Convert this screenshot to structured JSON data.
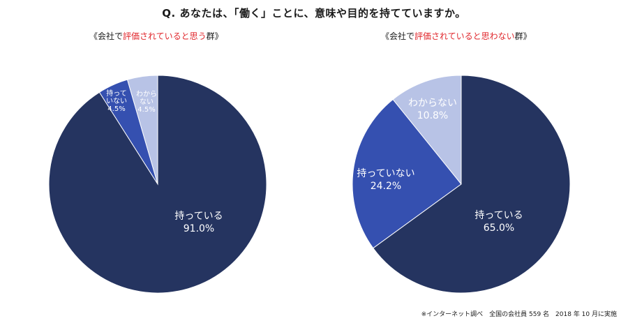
{
  "header": {
    "question": "Q. あなたは、「働く」ことに、意味や目的を持てていますか。"
  },
  "footnote": "※インターネット調べ　全国の会社員 559 名　2018 年 10 月に実施",
  "colors": {
    "holding": "#253460",
    "not_holding": "#3550b0",
    "unknown": "#b8c3e6"
  },
  "chart_data": [
    {
      "type": "pie",
      "title_prefix": "《会社で",
      "title_highlight": "評価されていると思う",
      "title_suffix": "群》",
      "slices": [
        {
          "label_lines": [
            "わから",
            "ない"
          ],
          "value_text": "4.5%",
          "value": 4.5
        },
        {
          "label_lines": [
            "持って",
            "いない"
          ],
          "value_text": "4.5%",
          "value": 4.5
        },
        {
          "label_lines": [
            "持っている"
          ],
          "value_text": "91.0%",
          "value": 91.0
        }
      ]
    },
    {
      "type": "pie",
      "title_prefix": "《会社で",
      "title_highlight": "評価されていると思わない",
      "title_suffix": "群》",
      "slices": [
        {
          "label_lines": [
            "わからない"
          ],
          "value_text": "10.8%",
          "value": 10.8
        },
        {
          "label_lines": [
            "持っていない"
          ],
          "value_text": "24.2%",
          "value": 24.2
        },
        {
          "label_lines": [
            "持っている"
          ],
          "value_text": "65.0%",
          "value": 65.0
        }
      ]
    }
  ]
}
